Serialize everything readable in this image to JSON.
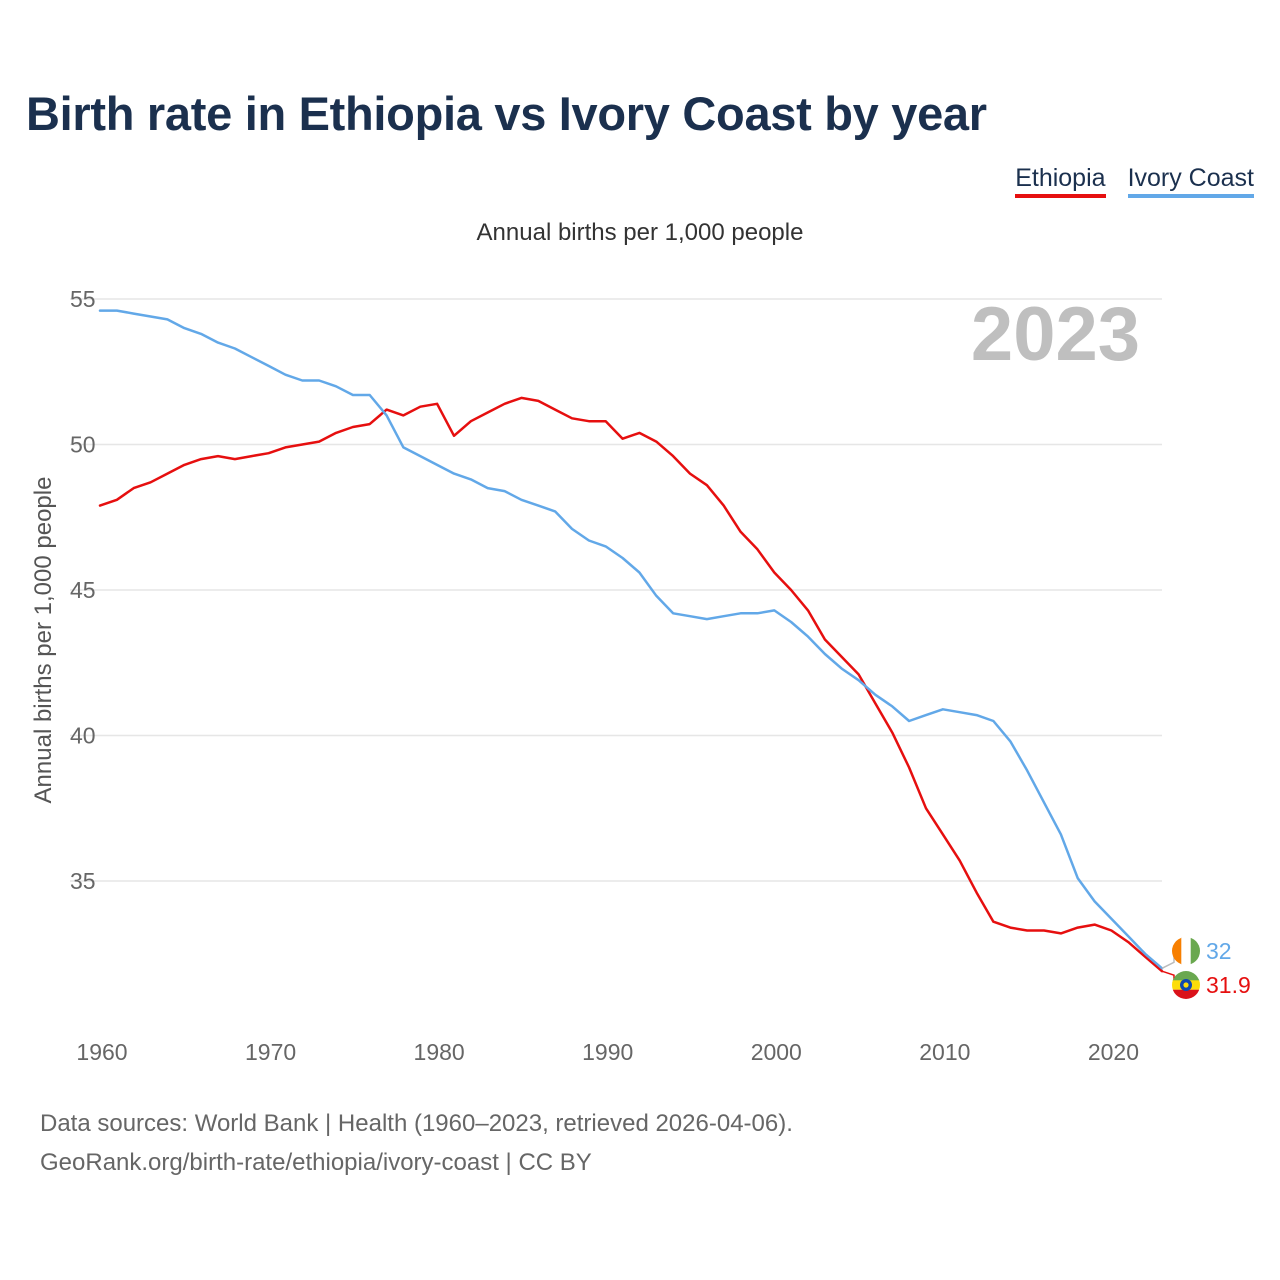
{
  "title": "Birth rate in Ethiopia vs Ivory Coast by year",
  "legend": [
    {
      "name": "Ethiopia",
      "color": "#e60f0f"
    },
    {
      "name": "Ivory Coast",
      "color": "#62a8e8"
    }
  ],
  "footer": {
    "line1": "Data sources: World Bank | Health (1960–2023, retrieved 2026-04-06).",
    "line2": "GeoRank.org/birth-rate/ethiopia/ivory-coast | CC BY"
  },
  "chart_data": {
    "type": "line",
    "title": "Birth rate in Ethiopia vs Ivory Coast by year",
    "subtitle": "Annual births per 1,000 people",
    "ylabel": "Annual births per 1,000 people",
    "xlabel": "",
    "year_label": "2023",
    "xlim": [
      1960,
      2023
    ],
    "ylim": [
      30.6,
      56
    ],
    "x_ticks": [
      1960,
      1970,
      1980,
      1990,
      2000,
      2010,
      2020
    ],
    "y_ticks": [
      35,
      40,
      45,
      50,
      55
    ],
    "grid": true,
    "legend_position": "top-right",
    "x": [
      1960,
      1961,
      1962,
      1963,
      1964,
      1965,
      1966,
      1967,
      1968,
      1969,
      1970,
      1971,
      1972,
      1973,
      1974,
      1975,
      1976,
      1977,
      1978,
      1979,
      1980,
      1981,
      1982,
      1983,
      1984,
      1985,
      1986,
      1987,
      1988,
      1989,
      1990,
      1991,
      1992,
      1993,
      1994,
      1995,
      1996,
      1997,
      1998,
      1999,
      2000,
      2001,
      2002,
      2003,
      2004,
      2005,
      2006,
      2007,
      2008,
      2009,
      2010,
      2011,
      2012,
      2013,
      2014,
      2015,
      2016,
      2017,
      2018,
      2019,
      2020,
      2021,
      2022,
      2023
    ],
    "series": [
      {
        "name": "Ethiopia",
        "color": "#e60f0f",
        "end_label": "31.9",
        "values": [
          47.9,
          48.1,
          48.5,
          48.7,
          49.0,
          49.3,
          49.5,
          49.6,
          49.5,
          49.6,
          49.7,
          49.9,
          50.0,
          50.1,
          50.4,
          50.6,
          50.7,
          51.2,
          51.0,
          51.3,
          51.4,
          50.3,
          50.8,
          51.1,
          51.4,
          51.6,
          51.5,
          51.2,
          50.9,
          50.8,
          50.8,
          50.2,
          50.4,
          50.1,
          49.6,
          49.0,
          48.6,
          47.9,
          47.0,
          46.4,
          45.6,
          45.0,
          44.3,
          43.3,
          42.7,
          42.1,
          41.1,
          40.1,
          38.9,
          37.5,
          36.6,
          35.7,
          34.6,
          33.6,
          33.4,
          33.3,
          33.3,
          33.2,
          33.4,
          33.5,
          33.3,
          32.9,
          32.4,
          31.9
        ]
      },
      {
        "name": "Ivory Coast",
        "color": "#62a8e8",
        "end_label": "32",
        "values": [
          54.6,
          54.6,
          54.5,
          54.4,
          54.3,
          54.0,
          53.8,
          53.5,
          53.3,
          53.0,
          52.7,
          52.4,
          52.2,
          52.2,
          52.0,
          51.7,
          51.7,
          51.0,
          49.9,
          49.6,
          49.3,
          49.0,
          48.8,
          48.5,
          48.4,
          48.1,
          47.9,
          47.7,
          47.1,
          46.7,
          46.5,
          46.1,
          45.6,
          44.8,
          44.2,
          44.1,
          44.0,
          44.1,
          44.2,
          44.2,
          44.3,
          43.9,
          43.4,
          42.8,
          42.3,
          41.9,
          41.4,
          41.0,
          40.5,
          40.7,
          40.9,
          40.8,
          40.7,
          40.5,
          39.8,
          38.8,
          37.7,
          36.6,
          35.1,
          34.3,
          33.7,
          33.1,
          32.5,
          32.0
        ]
      }
    ]
  }
}
